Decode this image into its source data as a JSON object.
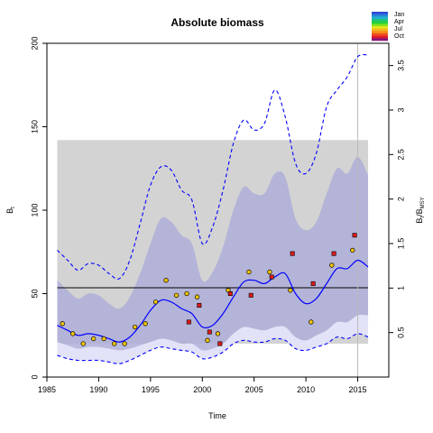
{
  "chart_data": {
    "type": "line",
    "title": "Absolute biomass",
    "xlabel": "Time",
    "ylabel": "B_t",
    "ylabel_right": "B_t/B_MSY",
    "xlim": [
      1985,
      2018
    ],
    "ylim": [
      0,
      200
    ],
    "ylim_right": [
      0,
      3.75
    ],
    "x_ticks": [
      1985,
      1990,
      1995,
      2000,
      2005,
      2010,
      2015
    ],
    "y_ticks": [
      0,
      50,
      100,
      150,
      200
    ],
    "y_ticks_right": [
      0.5,
      1,
      1.5,
      2,
      2.5,
      3,
      3.5
    ],
    "bmsy": 53.5,
    "vertical_marker_x": 2015.0,
    "legend_months": [
      "Jan",
      "Apr",
      "Jul",
      "Oct"
    ],
    "legend_colors": [
      "#2a4bd7",
      "#2a7fd7",
      "#20b0d0",
      "#22c37a",
      "#1fd13a",
      "#7fe01f",
      "#e5e51c",
      "#f2b81b",
      "#f58a1b",
      "#ef4d1f",
      "#e01a2c",
      "#8a1578"
    ],
    "gray_band": {
      "x": [
        1986,
        2016
      ],
      "y": [
        20,
        142
      ]
    },
    "biomass": {
      "x": [
        1986,
        1987,
        1988,
        1989,
        1990,
        1991,
        1992,
        1993,
        1994,
        1995,
        1996,
        1997,
        1998,
        1999,
        2000,
        2001,
        2002,
        2003,
        2004,
        2005,
        2006,
        2007,
        2008,
        2009,
        2010,
        2011,
        2012,
        2013,
        2014,
        2015,
        2016
      ],
      "median": [
        31,
        28,
        25,
        26,
        25,
        23,
        21,
        24,
        31,
        40,
        46,
        45,
        41,
        38,
        30,
        31,
        38,
        48,
        57,
        58,
        56,
        60,
        62,
        50,
        44,
        47,
        56,
        65,
        65,
        70,
        66
      ],
      "ci_lower": [
        21,
        19,
        17,
        18,
        18,
        17,
        16,
        17,
        19,
        21,
        23,
        22,
        20,
        20,
        16,
        17,
        20,
        26,
        30,
        29,
        28,
        30,
        30,
        24,
        22,
        25,
        28,
        33,
        33,
        37,
        37
      ],
      "ci_upper": [
        58,
        52,
        47,
        50,
        49,
        44,
        41,
        48,
        62,
        80,
        95,
        93,
        85,
        80,
        58,
        63,
        78,
        100,
        114,
        110,
        110,
        122,
        120,
        95,
        88,
        93,
        110,
        125,
        122,
        132,
        121
      ]
    },
    "prediction_interval": {
      "x": [
        1986,
        1987,
        1988,
        1989,
        1990,
        1991,
        1992,
        1993,
        1994,
        1995,
        1996,
        1997,
        1998,
        1999,
        2000,
        2001,
        2002,
        2003,
        2004,
        2005,
        2006,
        2007,
        2008,
        2009,
        2010,
        2011,
        2012,
        2013,
        2014,
        2015,
        2016
      ],
      "lower": [
        13,
        11,
        10,
        10,
        10,
        9,
        8,
        10,
        13,
        16,
        18,
        17,
        16,
        15,
        11,
        12,
        15,
        20,
        22,
        21,
        21,
        23,
        22,
        17,
        16,
        18,
        20,
        24,
        23,
        26,
        24
      ],
      "upper": [
        76,
        70,
        64,
        68,
        67,
        62,
        59,
        70,
        92,
        115,
        126,
        124,
        112,
        106,
        80,
        90,
        112,
        140,
        154,
        148,
        152,
        172,
        156,
        128,
        122,
        134,
        162,
        172,
        180,
        192,
        193
      ]
    },
    "observations_yellow": {
      "x": [
        1986.5,
        1987.5,
        1988.5,
        1989.5,
        1990.5,
        1991.5,
        1992.5,
        1993.5,
        1994.5,
        1995.5,
        1996.5,
        1997.5,
        1998.5,
        1999.5,
        2000.5,
        2001.5,
        2002.5,
        2004.5,
        2006.5,
        2008.5,
        2010.5,
        2012.5,
        2014.5
      ],
      "y": [
        32,
        26,
        20,
        23,
        23,
        20,
        20,
        30,
        32,
        45,
        58,
        49,
        50,
        48,
        22,
        26,
        52,
        63,
        63,
        52,
        33,
        67,
        76
      ]
    },
    "observations_red": {
      "x": [
        1998.7,
        1999.7,
        2000.7,
        2001.7,
        2002.7,
        2004.7,
        2006.7,
        2008.7,
        2010.7,
        2012.7,
        2014.7
      ],
      "y": [
        33,
        43,
        27,
        20,
        50,
        49,
        60,
        74,
        56,
        74,
        85
      ]
    }
  }
}
